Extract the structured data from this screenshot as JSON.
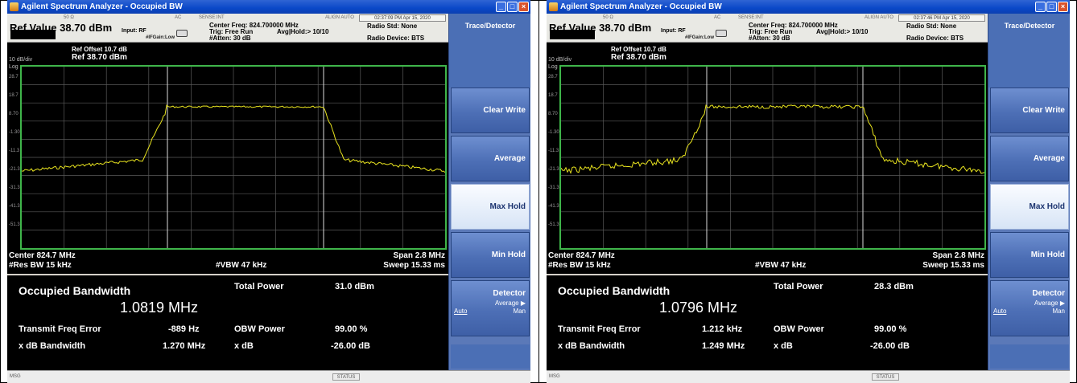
{
  "colors": {
    "trace": "#e9e41f",
    "grid_border": "#3fb54a",
    "grid_lines": "#5a5a5a",
    "softkey_bg": "#4d6fb6",
    "softkey_selected": "#e6eefa",
    "titlebar": "#0a48c8"
  },
  "windows": [
    {
      "title": "Agilent Spectrum Analyzer - Occupied BW",
      "infobar": {
        "impedance": "50 Ω",
        "ac": "AC",
        "sense": "SENSE:INT",
        "align": "ALIGN AUTO",
        "timestamp": "02:37:09 PM Apr 15, 2020",
        "ref_value": "Ref Value  38.70 dBm",
        "input": "Input: RF",
        "ifgain": "#IFGain:Low",
        "center_freq": "Center Freq: 824.700000 MHz",
        "trig": "Trig: Free Run",
        "avg_hold": "Avg|Hold:> 10/10",
        "atten": "#Atten: 30 dB",
        "radio_std": "Radio Std: None",
        "radio_device": "Radio Device: BTS"
      },
      "screen": {
        "scale": "10 dB/div",
        "scale_type": "Log",
        "ref_offset": "Ref Offset 10.7 dB",
        "ref_level": "Ref 38.70 dBm",
        "y_ticks": [
          "28.7",
          "18.7",
          "8.70",
          "-1.30",
          "-11.3",
          "-21.3",
          "-31.3",
          "-41.3",
          "-51.3"
        ],
        "center": "Center  824.7 MHz",
        "res_bw": "#Res BW  15 kHz",
        "vbw": "#VBW  47 kHz",
        "span": "Span 2.8 MHz",
        "sweep": "Sweep  15.33 ms"
      },
      "results": {
        "obw_label": "Occupied Bandwidth",
        "obw_value": "1.0819 MHz",
        "total_power_label": "Total Power",
        "total_power_value": "31.0 dBm",
        "tfe_label": "Transmit Freq Error",
        "tfe_value": "-889 Hz",
        "obw_power_label": "OBW Power",
        "obw_power_value": "99.00 %",
        "xdb_bw_label": "x dB Bandwidth",
        "xdb_bw_value": "1.270 MHz",
        "xdb_label": "x dB",
        "xdb_value": "-26.00 dB"
      },
      "status": {
        "msg": "MSG",
        "status": "STATUS"
      },
      "softkeys": {
        "title": "Trace/Detector",
        "clear_write": "Clear Write",
        "average": "Average",
        "max_hold": "Max Hold",
        "min_hold": "Min Hold",
        "detector": "Detector",
        "detector_sub": "Average ▶",
        "detector_auto": "Auto",
        "detector_man": "Man"
      }
    },
    {
      "title": "Agilent Spectrum Analyzer - Occupied BW",
      "infobar": {
        "impedance": "50 Ω",
        "ac": "AC",
        "sense": "SENSE:INT",
        "align": "ALIGN AUTO",
        "timestamp": "02:37:46 PM Apr 15, 2020",
        "ref_value": "Ref Value  38.70 dBm",
        "input": "Input: RF",
        "ifgain": "#IFGain:Low",
        "center_freq": "Center Freq: 824.700000 MHz",
        "trig": "Trig: Free Run",
        "avg_hold": "Avg|Hold:> 10/10",
        "atten": "#Atten: 30 dB",
        "radio_std": "Radio Std: None",
        "radio_device": "Radio Device: BTS"
      },
      "screen": {
        "scale": "10 dB/div",
        "scale_type": "Log",
        "ref_offset": "Ref Offset 10.7 dB",
        "ref_level": "Ref 38.70 dBm",
        "y_ticks": [
          "28.7",
          "18.7",
          "8.70",
          "-1.30",
          "-11.3",
          "-21.3",
          "-31.3",
          "-41.3",
          "-51.3"
        ],
        "center": "Center  824.7 MHz",
        "res_bw": "#Res BW  15 kHz",
        "vbw": "#VBW  47 kHz",
        "span": "Span 2.8 MHz",
        "sweep": "Sweep  15.33 ms"
      },
      "results": {
        "obw_label": "Occupied Bandwidth",
        "obw_value": "1.0796 MHz",
        "total_power_label": "Total Power",
        "total_power_value": "28.3 dBm",
        "tfe_label": "Transmit Freq Error",
        "tfe_value": "1.212 kHz",
        "obw_power_label": "OBW Power",
        "obw_power_value": "99.00 %",
        "xdb_bw_label": "x dB Bandwidth",
        "xdb_bw_value": "1.249 MHz",
        "xdb_label": "x dB",
        "xdb_value": "-26.00 dB"
      },
      "status": {
        "msg": "MSG",
        "status": "STATUS"
      },
      "softkeys": {
        "title": "Trace/Detector",
        "clear_write": "Clear Write",
        "average": "Average",
        "max_hold": "Max Hold",
        "min_hold": "Min Hold",
        "detector": "Detector",
        "detector_sub": "Average ▶",
        "detector_auto": "Auto",
        "detector_man": "Man"
      }
    }
  ]
}
